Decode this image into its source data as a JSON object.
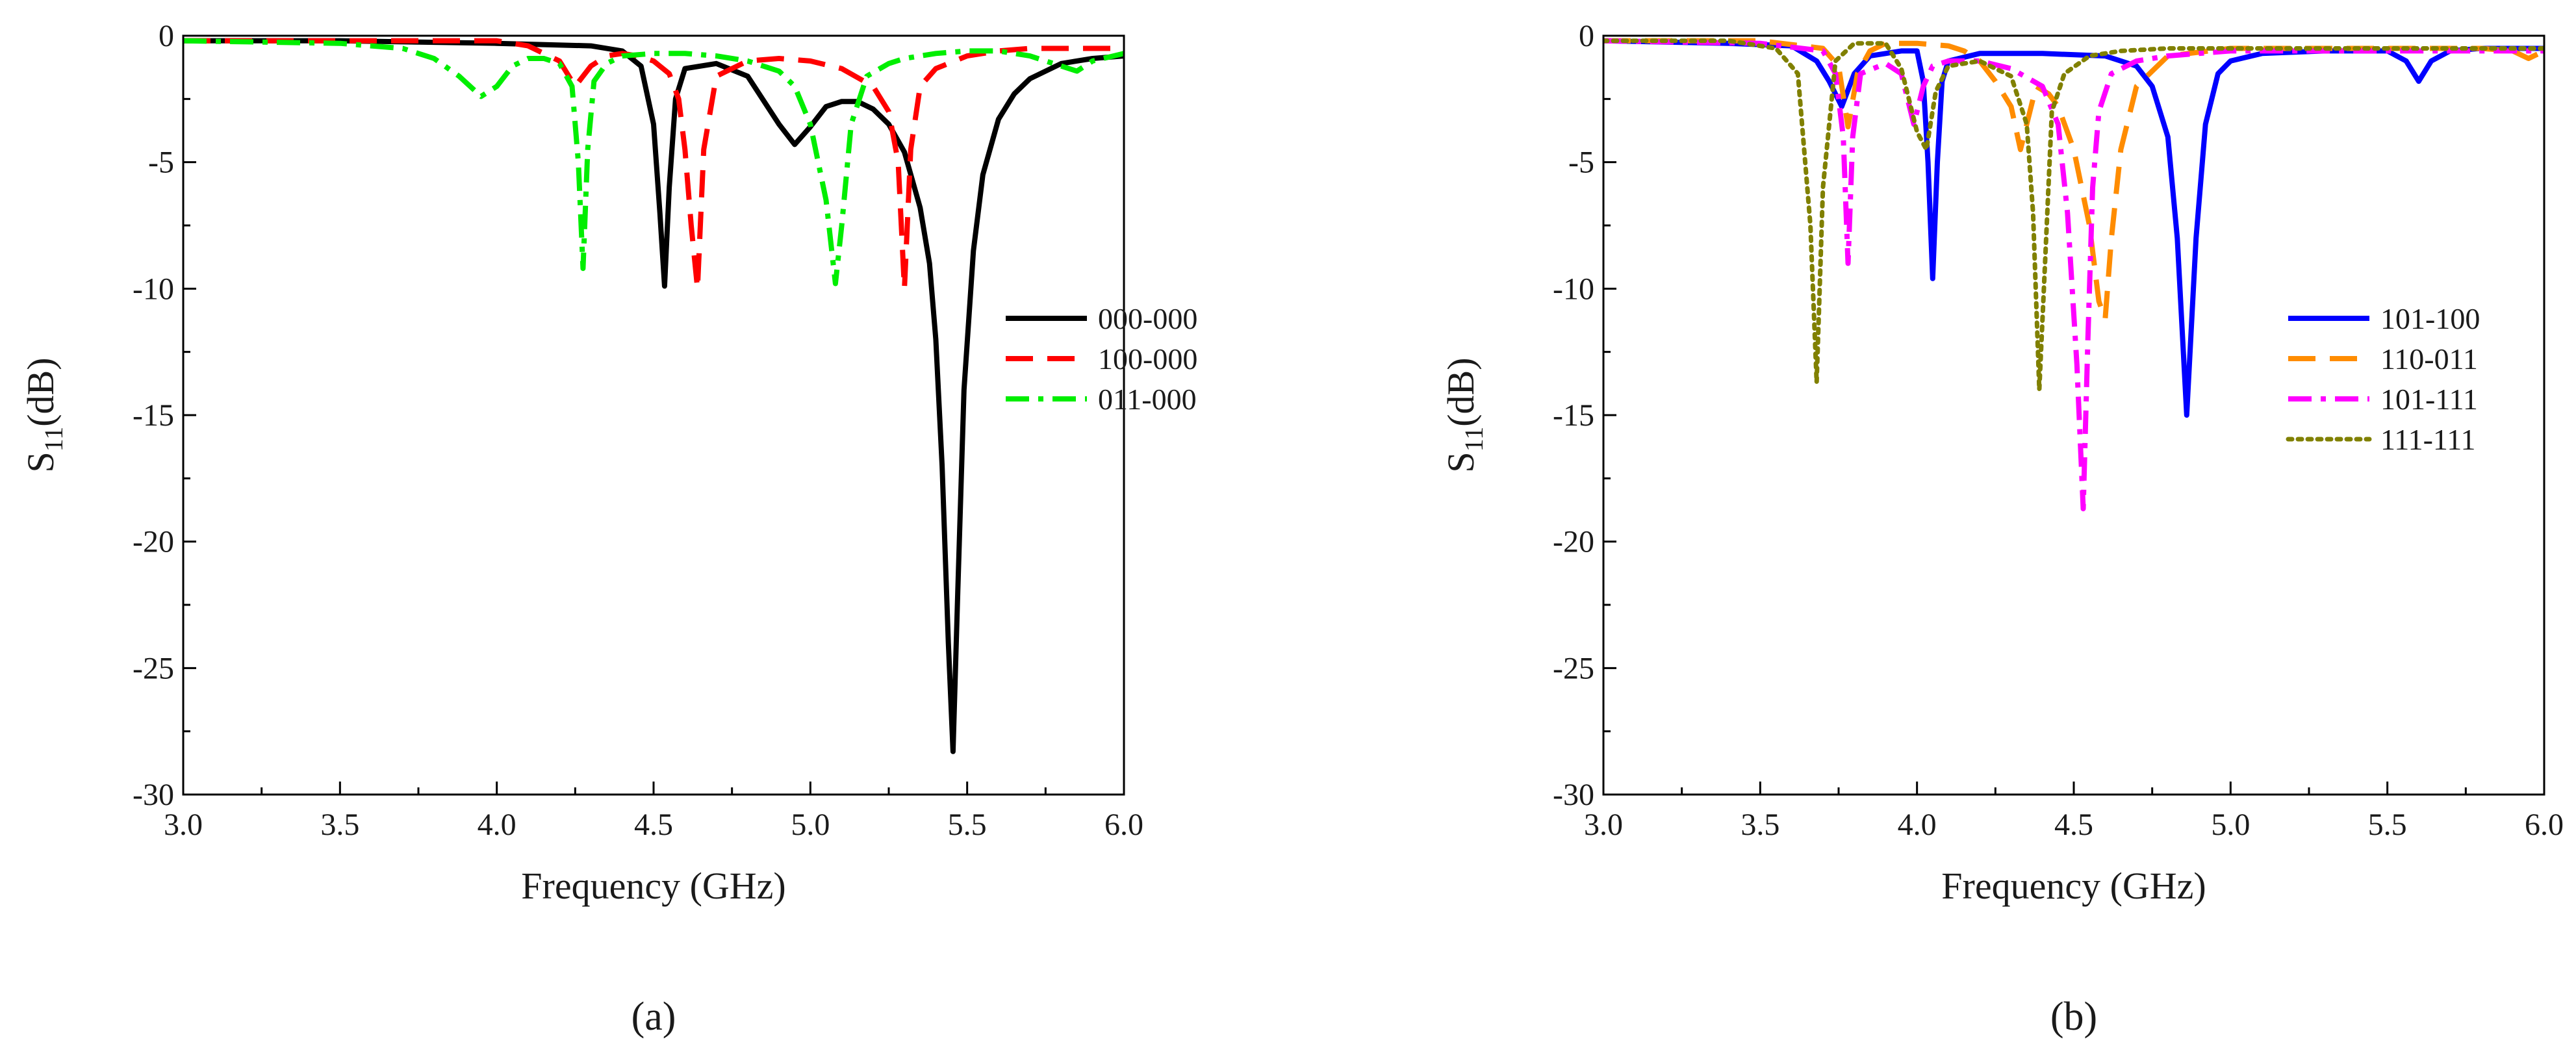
{
  "chart_data": [
    {
      "type": "line",
      "panel_label": "(a)",
      "xlabel": "Frequency (GHz)",
      "ylabel_main": "S",
      "ylabel_sub": "11",
      "ylabel_suffix": "(dB)",
      "xlim": [
        3.0,
        6.0
      ],
      "ylim": [
        -30,
        0
      ],
      "xticks": [
        3.0,
        3.5,
        4.0,
        4.5,
        5.0,
        5.5,
        6.0
      ],
      "xtick_labels": [
        "3.0",
        "3.5",
        "4.0",
        "4.5",
        "5.0",
        "5.5",
        "6.0"
      ],
      "yticks": [
        0,
        -5,
        -10,
        -15,
        -20,
        -25,
        -30
      ],
      "ytick_labels": [
        "0",
        "-5",
        "-10",
        "-15",
        "-20",
        "-25",
        "-30"
      ],
      "legend_position": "center-right",
      "series": [
        {
          "name": "000-000",
          "color": "#000000",
          "style": "solid",
          "x": [
            3.0,
            3.5,
            4.0,
            4.3,
            4.4,
            4.46,
            4.5,
            4.52,
            4.535,
            4.55,
            4.57,
            4.6,
            4.7,
            4.8,
            4.9,
            4.95,
            5.0,
            5.05,
            5.1,
            5.15,
            5.2,
            5.25,
            5.3,
            5.35,
            5.38,
            5.4,
            5.42,
            5.44,
            5.455,
            5.47,
            5.49,
            5.52,
            5.55,
            5.6,
            5.65,
            5.7,
            5.8,
            5.9,
            6.0
          ],
          "y": [
            -0.2,
            -0.2,
            -0.3,
            -0.4,
            -0.6,
            -1.2,
            -3.5,
            -7.0,
            -9.9,
            -6.0,
            -2.5,
            -1.3,
            -1.1,
            -1.6,
            -3.5,
            -4.3,
            -3.6,
            -2.8,
            -2.6,
            -2.6,
            -2.9,
            -3.5,
            -4.6,
            -6.8,
            -9.0,
            -12.0,
            -17.0,
            -24.0,
            -28.3,
            -22.0,
            -14.0,
            -8.5,
            -5.5,
            -3.3,
            -2.3,
            -1.7,
            -1.1,
            -0.9,
            -0.8
          ]
        },
        {
          "name": "100-000",
          "color": "#ff0000",
          "style": "dashed",
          "x": [
            3.0,
            3.5,
            4.0,
            4.1,
            4.2,
            4.25,
            4.3,
            4.35,
            4.4,
            4.45,
            4.5,
            4.55,
            4.58,
            4.6,
            4.62,
            4.64,
            4.66,
            4.7,
            4.8,
            4.9,
            5.0,
            5.1,
            5.2,
            5.25,
            5.28,
            5.3,
            5.32,
            5.35,
            5.4,
            5.5,
            5.6,
            5.7,
            5.8,
            6.0
          ],
          "y": [
            -0.2,
            -0.2,
            -0.2,
            -0.4,
            -1.0,
            -2.0,
            -1.2,
            -0.8,
            -0.7,
            -0.8,
            -1.0,
            -1.5,
            -2.5,
            -4.5,
            -7.5,
            -10.0,
            -4.5,
            -1.6,
            -1.0,
            -0.9,
            -1.0,
            -1.3,
            -2.0,
            -3.0,
            -5.0,
            -10.0,
            -4.5,
            -2.0,
            -1.3,
            -0.8,
            -0.6,
            -0.5,
            -0.5,
            -0.5
          ]
        },
        {
          "name": "011-000",
          "color": "#00ee00",
          "style": "dashdot",
          "x": [
            3.0,
            3.5,
            3.7,
            3.8,
            3.88,
            3.95,
            4.0,
            4.05,
            4.1,
            4.15,
            4.2,
            4.24,
            4.26,
            4.275,
            4.29,
            4.31,
            4.35,
            4.4,
            4.5,
            4.6,
            4.7,
            4.8,
            4.9,
            4.95,
            5.0,
            5.05,
            5.08,
            5.1,
            5.13,
            5.18,
            5.25,
            5.3,
            5.4,
            5.5,
            5.6,
            5.7,
            5.8,
            5.85,
            5.9,
            6.0
          ],
          "y": [
            -0.2,
            -0.3,
            -0.5,
            -0.9,
            -1.6,
            -2.4,
            -2.0,
            -1.2,
            -0.9,
            -0.9,
            -1.1,
            -2.0,
            -5.0,
            -9.2,
            -4.5,
            -1.8,
            -1.1,
            -0.8,
            -0.7,
            -0.7,
            -0.8,
            -1.0,
            -1.4,
            -2.0,
            -3.5,
            -6.5,
            -9.8,
            -7.5,
            -3.5,
            -1.6,
            -1.1,
            -0.9,
            -0.7,
            -0.6,
            -0.6,
            -0.8,
            -1.2,
            -1.4,
            -1.0,
            -0.7
          ]
        }
      ]
    },
    {
      "type": "line",
      "panel_label": "(b)",
      "xlabel": "Frequency (GHz)",
      "ylabel_main": "S",
      "ylabel_sub": "11",
      "ylabel_suffix": "(dB)",
      "xlim": [
        3.0,
        6.0
      ],
      "ylim": [
        -30,
        0
      ],
      "xticks": [
        3.0,
        3.5,
        4.0,
        4.5,
        5.0,
        5.5,
        6.0
      ],
      "xtick_labels": [
        "3.0",
        "3.5",
        "4.0",
        "4.5",
        "5.0",
        "5.5",
        "6.0"
      ],
      "yticks": [
        0,
        -5,
        -10,
        -15,
        -20,
        -25,
        -30
      ],
      "ytick_labels": [
        "0",
        "-5",
        "-10",
        "-15",
        "-20",
        "-25",
        "-30"
      ],
      "legend_position": "center-right",
      "series": [
        {
          "name": "101-100",
          "color": "#0000ff",
          "style": "solid",
          "x": [
            3.0,
            3.4,
            3.6,
            3.68,
            3.72,
            3.76,
            3.8,
            3.85,
            3.9,
            3.95,
            4.0,
            4.02,
            4.035,
            4.05,
            4.065,
            4.08,
            4.1,
            4.2,
            4.4,
            4.6,
            4.7,
            4.75,
            4.8,
            4.83,
            4.86,
            4.89,
            4.92,
            4.96,
            5.0,
            5.1,
            5.3,
            5.5,
            5.56,
            5.6,
            5.64,
            5.7,
            5.8,
            6.0
          ],
          "y": [
            -0.2,
            -0.3,
            -0.4,
            -1.0,
            -1.8,
            -2.8,
            -1.5,
            -0.8,
            -0.7,
            -0.6,
            -0.6,
            -1.8,
            -5.0,
            -9.6,
            -5.0,
            -1.8,
            -1.0,
            -0.7,
            -0.7,
            -0.8,
            -1.2,
            -2.0,
            -4.0,
            -8.0,
            -15.0,
            -8.0,
            -3.5,
            -1.5,
            -1.0,
            -0.7,
            -0.6,
            -0.6,
            -1.0,
            -1.8,
            -1.0,
            -0.6,
            -0.5,
            -0.5
          ]
        },
        {
          "name": "110-011",
          "color": "#ff8c00",
          "style": "dashed",
          "x": [
            3.0,
            3.5,
            3.7,
            3.75,
            3.78,
            3.81,
            3.85,
            3.9,
            4.0,
            4.1,
            4.15,
            4.2,
            4.25,
            4.3,
            4.33,
            4.36,
            4.38,
            4.42,
            4.45,
            4.5,
            4.55,
            4.58,
            4.6,
            4.62,
            4.65,
            4.7,
            4.8,
            5.0,
            5.5,
            5.8,
            5.9,
            5.95,
            6.0
          ],
          "y": [
            -0.2,
            -0.2,
            -0.5,
            -1.2,
            -3.6,
            -1.5,
            -0.6,
            -0.3,
            -0.3,
            -0.4,
            -0.6,
            -1.0,
            -1.8,
            -2.8,
            -4.5,
            -3.0,
            -2.0,
            -2.3,
            -2.8,
            -4.5,
            -7.5,
            -10.5,
            -11.2,
            -8.0,
            -4.5,
            -2.0,
            -0.8,
            -0.5,
            -0.5,
            -0.5,
            -0.6,
            -0.9,
            -0.6
          ]
        },
        {
          "name": "101-111",
          "color": "#ff00ff",
          "style": "dashdot",
          "x": [
            3.0,
            3.5,
            3.7,
            3.74,
            3.765,
            3.78,
            3.795,
            3.82,
            3.9,
            3.95,
            3.99,
            4.02,
            4.05,
            4.1,
            4.2,
            4.3,
            4.4,
            4.45,
            4.48,
            4.51,
            4.53,
            4.545,
            4.56,
            4.58,
            4.62,
            4.7,
            4.8,
            5.0,
            5.5,
            6.0
          ],
          "y": [
            -0.2,
            -0.3,
            -0.6,
            -1.5,
            -4.0,
            -9.0,
            -4.0,
            -1.5,
            -1.1,
            -1.5,
            -3.5,
            -2.0,
            -1.2,
            -1.0,
            -1.0,
            -1.3,
            -2.0,
            -3.5,
            -7.0,
            -13.0,
            -18.7,
            -12.0,
            -6.0,
            -3.0,
            -1.5,
            -1.0,
            -0.8,
            -0.6,
            -0.6,
            -0.6
          ]
        },
        {
          "name": "111-111",
          "color": "#808000",
          "style": "dotted",
          "x": [
            3.0,
            3.4,
            3.55,
            3.62,
            3.66,
            3.68,
            3.7,
            3.74,
            3.8,
            3.9,
            3.95,
            4.0,
            4.03,
            4.06,
            4.1,
            4.2,
            4.3,
            4.35,
            4.37,
            4.39,
            4.41,
            4.43,
            4.47,
            4.55,
            4.65,
            4.8,
            5.2,
            6.0
          ],
          "y": [
            -0.2,
            -0.2,
            -0.5,
            -1.5,
            -7.5,
            -13.7,
            -6.0,
            -1.0,
            -0.3,
            -0.3,
            -1.3,
            -3.8,
            -4.5,
            -2.2,
            -1.2,
            -1.0,
            -1.6,
            -3.5,
            -7.0,
            -14.0,
            -8.5,
            -3.0,
            -1.5,
            -0.8,
            -0.6,
            -0.5,
            -0.5,
            -0.5
          ]
        }
      ]
    }
  ]
}
